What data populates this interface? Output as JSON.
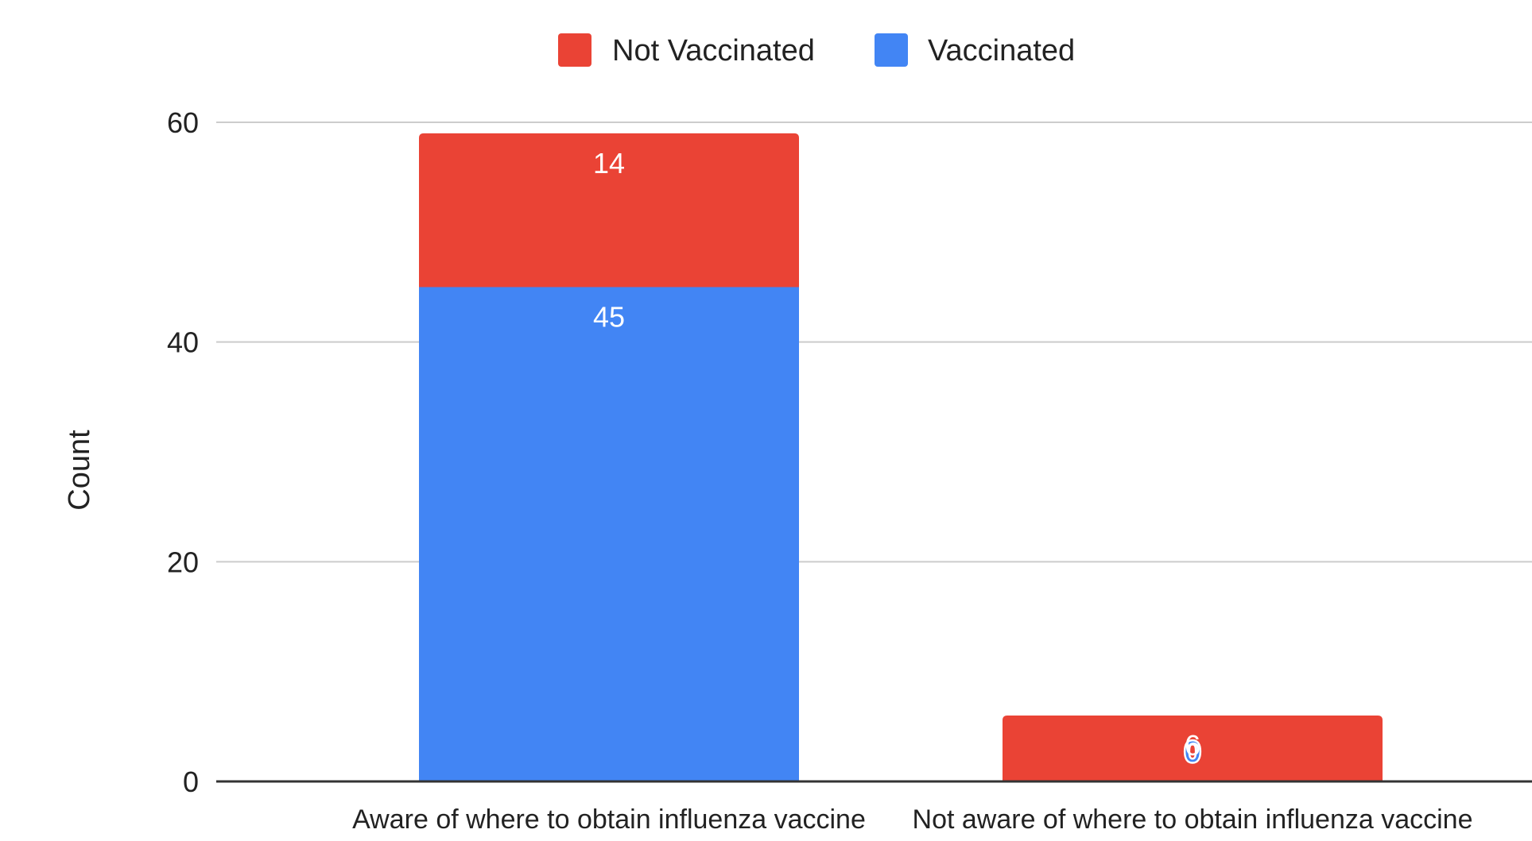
{
  "chart_data": {
    "type": "bar",
    "stacked": true,
    "title": "",
    "xlabel": "",
    "ylabel": "Count",
    "categories": [
      "Aware of where to obtain influenza vaccine",
      "Not aware of where to obtain influenza vaccine"
    ],
    "series": [
      {
        "name": "Vaccinated",
        "values": [
          45,
          0
        ],
        "color": "#4285f4"
      },
      {
        "name": "Not Vaccinated",
        "values": [
          14,
          6
        ],
        "color": "#ea4335"
      }
    ],
    "legend_order": [
      "Not Vaccinated",
      "Vaccinated"
    ],
    "legend_position": "top",
    "ylim": [
      0,
      60
    ],
    "yticks": [
      0,
      20,
      40,
      60
    ],
    "grid": true
  }
}
